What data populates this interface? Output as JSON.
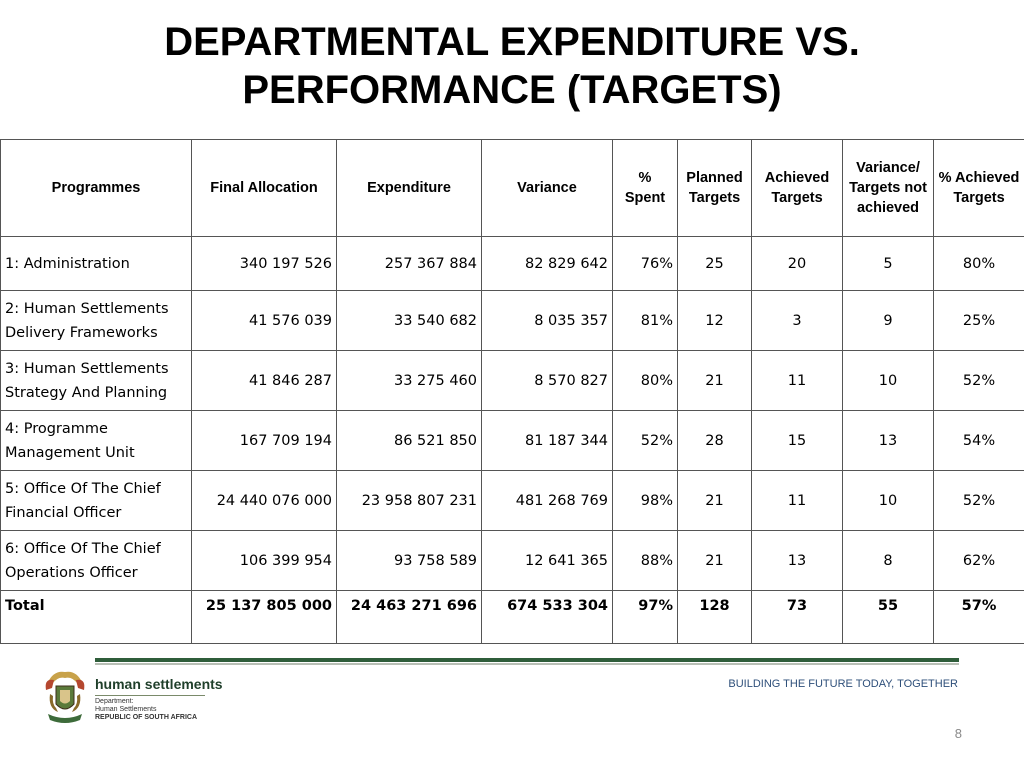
{
  "slide": {
    "title_line1": "DEPARTMENTAL EXPENDITURE VS.",
    "title_line2": "PERFORMANCE (TARGETS)",
    "page_number": "8"
  },
  "table": {
    "headers": [
      "Programmes",
      "Final Allocation",
      "Expenditure",
      "Variance",
      "% Spent",
      "Planned Targets",
      "Achieved Targets",
      "Variance/ Targets not achieved",
      "% Achieved Targets"
    ],
    "rows": [
      {
        "programme": "1: Administration",
        "final_allocation": "340 197 526",
        "expenditure": "257 367 884",
        "variance": "82 829 642",
        "pct_spent": "76%",
        "planned": "25",
        "achieved": "20",
        "not_achieved": "5",
        "pct_achieved": "80%"
      },
      {
        "programme": "2: Human Settlements Delivery Frameworks",
        "final_allocation": "41 576 039",
        "expenditure": "33 540 682",
        "variance": "8 035 357",
        "pct_spent": "81%",
        "planned": "12",
        "achieved": "3",
        "not_achieved": "9",
        "pct_achieved": "25%"
      },
      {
        "programme": "3: Human Settlements Strategy And Planning",
        "final_allocation": "41 846 287",
        "expenditure": "33 275 460",
        "variance": "8 570 827",
        "pct_spent": "80%",
        "planned": "21",
        "achieved": "11",
        "not_achieved": "10",
        "pct_achieved": "52%"
      },
      {
        "programme": "4: Programme Management Unit",
        "final_allocation": "167 709 194",
        "expenditure": "86 521 850",
        "variance": "81 187 344",
        "pct_spent": "52%",
        "planned": "28",
        "achieved": "15",
        "not_achieved": "13",
        "pct_achieved": "54%"
      },
      {
        "programme": "5: Office Of The Chief Financial Officer",
        "final_allocation": "24 440 076 000",
        "expenditure": "23 958 807 231",
        "variance": "481 268 769",
        "pct_spent": "98%",
        "planned": "21",
        "achieved": "11",
        "not_achieved": "10",
        "pct_achieved": "52%"
      },
      {
        "programme": "6: Office Of The Chief Operations Officer",
        "final_allocation": "106 399 954",
        "expenditure": "93 758 589",
        "variance": "12 641 365",
        "pct_spent": "88%",
        "planned": "21",
        "achieved": "13",
        "not_achieved": "8",
        "pct_achieved": "62%"
      }
    ],
    "total": {
      "programme": "Total",
      "final_allocation": "25 137 805 000",
      "expenditure": "24 463 271 696",
      "variance": "674 533 304",
      "pct_spent": "97%",
      "planned": "128",
      "achieved": "73",
      "not_achieved": "55",
      "pct_achieved": "57%"
    }
  },
  "footer": {
    "logo_name": "human settlements",
    "logo_line1": "Department:",
    "logo_line2": "Human Settlements",
    "logo_line3": "REPUBLIC OF SOUTH AFRICA",
    "slogan": "BUILDING THE FUTURE TODAY, TOGETHER"
  },
  "colors": {
    "rule_green": "#2f5d3a",
    "slogan_blue": "#2e4f7a"
  }
}
